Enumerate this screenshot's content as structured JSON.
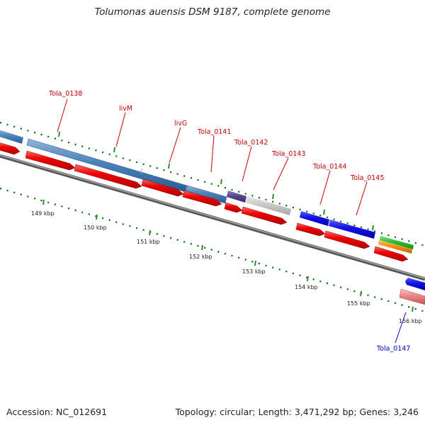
{
  "title": "Tolumonas auensis DSM 9187, complete genome",
  "footer": {
    "accession": "Accession: NC_012691",
    "stats": "Topology: circular; Length: 3,471,292 bp; Genes: 3,246"
  },
  "colors": {
    "gene_label": "#cc0000",
    "gene_label_highlight": "#0000cc",
    "feature_steelblue": "#4a82b8",
    "feature_purple": "#54468c",
    "feature_lightgray": "#c4c4c4",
    "feature_blue": "#1010e8",
    "feature_green": "#2eb82e",
    "feature_orange": "#f08c10",
    "cds_red": "#f00000",
    "cds_pink": "#e88080",
    "backbone": "#808080",
    "tick_green": "#006600"
  },
  "gene_labels": [
    {
      "text": "Tola_0138",
      "highlight": false
    },
    {
      "text": "livM",
      "highlight": false
    },
    {
      "text": "livG",
      "highlight": false
    },
    {
      "text": "Tola_0141",
      "highlight": false
    },
    {
      "text": "Tola_0142",
      "highlight": false
    },
    {
      "text": "Tola_0143",
      "highlight": false
    },
    {
      "text": "Tola_0144",
      "highlight": false
    },
    {
      "text": "Tola_0145",
      "highlight": false
    },
    {
      "text": "Tola_0147",
      "highlight": true
    }
  ],
  "kbp_labels": [
    "149 kbp",
    "150 kbp",
    "151 kbp",
    "152 kbp",
    "153 kbp",
    "154 kbp",
    "155 kbp",
    "156 kbp"
  ]
}
